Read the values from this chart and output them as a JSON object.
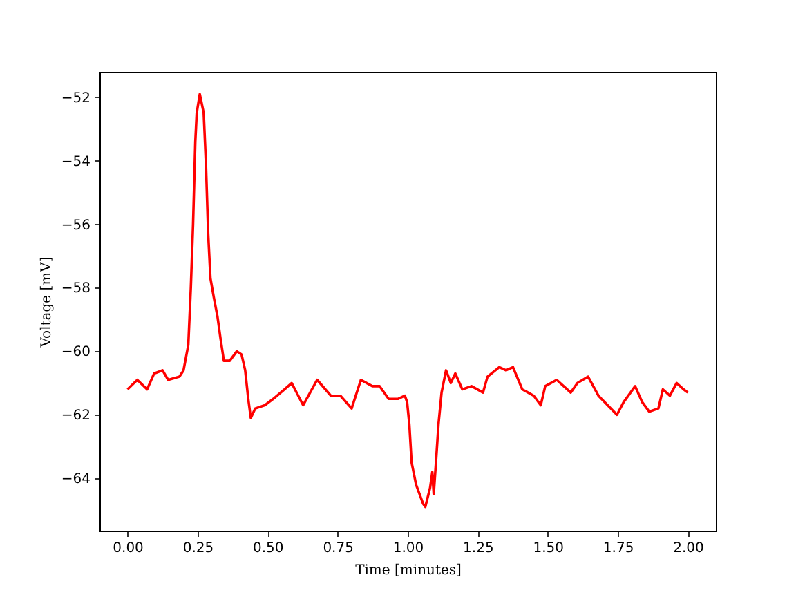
{
  "chart_data": {
    "type": "line",
    "xlabel": "Time [minutes]",
    "ylabel": "Voltage [mV]",
    "xlim": [
      -0.1,
      2.1
    ],
    "ylim": [
      -65.65,
      -51.2
    ],
    "xticks": [
      {
        "value": 0,
        "label": "0.00"
      },
      {
        "value": 0.25,
        "label": "0.25"
      },
      {
        "value": 0.5,
        "label": "0.50"
      },
      {
        "value": 0.75,
        "label": "0.75"
      },
      {
        "value": 1,
        "label": "1.00"
      },
      {
        "value": 1.25,
        "label": "1.25"
      },
      {
        "value": 1.5,
        "label": "1.50"
      },
      {
        "value": 1.75,
        "label": "1.75"
      },
      {
        "value": 2,
        "label": "2.00"
      }
    ],
    "yticks": [
      {
        "value": -64,
        "label": "−64"
      },
      {
        "value": -62,
        "label": "−62"
      },
      {
        "value": -60,
        "label": "−60"
      },
      {
        "value": -58,
        "label": "−58"
      },
      {
        "value": -56,
        "label": "−56"
      },
      {
        "value": -54,
        "label": "−54"
      },
      {
        "value": -52,
        "label": "−52"
      }
    ],
    "line_style": "solid",
    "x": [
      0,
      0.035,
      0.07,
      0.095,
      0.125,
      0.145,
      0.185,
      0.2,
      0.217,
      0.226,
      0.234,
      0.242,
      0.247,
      0.258,
      0.272,
      0.28,
      0.288,
      0.296,
      0.308,
      0.321,
      0.332,
      0.344,
      0.365,
      0.39,
      0.407,
      0.42,
      0.431,
      0.44,
      0.456,
      0.49,
      0.52,
      0.56,
      0.586,
      0.627,
      0.677,
      0.726,
      0.76,
      0.8,
      0.833,
      0.874,
      0.9,
      0.932,
      0.965,
      0.99,
      0.998,
      1.006,
      1.014,
      1.03,
      1.055,
      1.063,
      1.08,
      1.088,
      1.093,
      1.101,
      1.11,
      1.121,
      1.137,
      1.154,
      1.17,
      1.195,
      1.228,
      1.269,
      1.285,
      1.327,
      1.351,
      1.376,
      1.409,
      1.45,
      1.475,
      1.491,
      1.532,
      1.582,
      1.606,
      1.644,
      1.681,
      1.714,
      1.747,
      1.771,
      1.812,
      1.837,
      1.862,
      1.895,
      1.911,
      1.936,
      1.96,
      1.985,
      2.0
    ],
    "series": [
      {
        "color": "#ff0000",
        "values": [
          -61.2,
          -60.9,
          -61.2,
          -60.7,
          -60.6,
          -60.9,
          -60.8,
          -60.6,
          -59.8,
          -58.0,
          -56.0,
          -53.4,
          -52.5,
          -51.9,
          -52.5,
          -54.1,
          -56.3,
          -57.7,
          -58.3,
          -58.9,
          -59.6,
          -60.3,
          -60.3,
          -60.0,
          -60.1,
          -60.6,
          -61.5,
          -62.1,
          -61.8,
          -61.7,
          -61.5,
          -61.2,
          -61.0,
          -61.7,
          -60.9,
          -61.4,
          -61.4,
          -61.8,
          -60.9,
          -61.1,
          -61.1,
          -61.5,
          -61.5,
          -61.4,
          -61.6,
          -62.3,
          -63.5,
          -64.2,
          -64.8,
          -64.9,
          -64.3,
          -63.8,
          -64.5,
          -63.5,
          -62.3,
          -61.3,
          -60.6,
          -61.0,
          -60.7,
          -61.2,
          -61.1,
          -61.3,
          -60.8,
          -60.5,
          -60.6,
          -60.5,
          -61.2,
          -61.4,
          -61.7,
          -61.1,
          -60.9,
          -61.3,
          -61.0,
          -60.8,
          -61.4,
          -61.7,
          -62.0,
          -61.6,
          -61.1,
          -61.6,
          -61.9,
          -61.8,
          -61.2,
          -61.4,
          -61.0,
          -61.2,
          -61.3
        ]
      }
    ]
  }
}
